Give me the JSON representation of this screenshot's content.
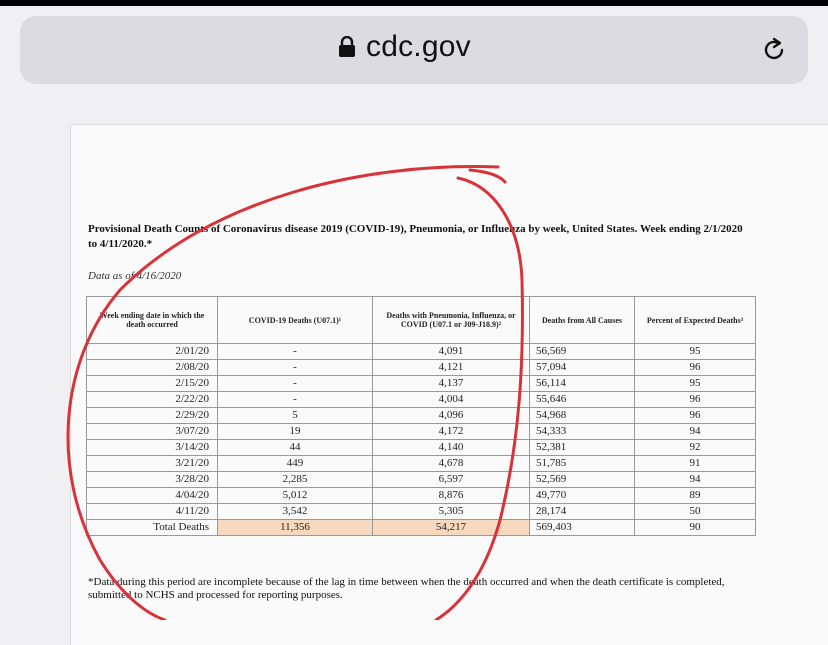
{
  "browser": {
    "url": "cdc.gov",
    "lock_icon": "lock-icon",
    "reload_icon": "reload-icon"
  },
  "document": {
    "title": "Provisional Death Counts of Coronavirus disease 2019 (COVID-19), Pneumonia, or Influenza by week, United States. Week ending 2/1/2020 to 4/11/2020.*",
    "data_as_of": "Data as of 4/16/2020",
    "table": {
      "headers": [
        "Week ending date in which the death occurred",
        "COVID-19 Deaths (U07.1)¹",
        "Deaths with Pneumonia, Influenza, or COVID (U07.1 or J09-J18.9)²",
        "Deaths from All Causes",
        "Percent of Expected Deaths³"
      ],
      "rows": [
        [
          "2/01/20",
          "-",
          "4,091",
          "56,569",
          "95"
        ],
        [
          "2/08/20",
          "-",
          "4,121",
          "57,094",
          "96"
        ],
        [
          "2/15/20",
          "-",
          "4,137",
          "56,114",
          "95"
        ],
        [
          "2/22/20",
          "-",
          "4,004",
          "55,646",
          "96"
        ],
        [
          "2/29/20",
          "5",
          "4,096",
          "54,968",
          "96"
        ],
        [
          "3/07/20",
          "19",
          "4,172",
          "54,333",
          "94"
        ],
        [
          "3/14/20",
          "44",
          "4,140",
          "52,381",
          "92"
        ],
        [
          "3/21/20",
          "449",
          "4,678",
          "51,785",
          "91"
        ],
        [
          "3/28/20",
          "2,285",
          "6,597",
          "52,569",
          "94"
        ],
        [
          "4/04/20",
          "5,012",
          "8,876",
          "49,770",
          "89"
        ],
        [
          "4/11/20",
          "3,542",
          "5,305",
          "28,174",
          "50"
        ]
      ],
      "total": [
        "Total Deaths",
        "11,356",
        "54,217",
        "569,403",
        "90"
      ]
    },
    "footnote": "*Data during this period are incomplete because of the lag in time between when the death occurred and when the death certificate is completed, submitted to NCHS and processed for reporting purposes."
  },
  "colors": {
    "annotation": "#d9333a",
    "highlight": "#f6d8bf",
    "urlbar": "#dcdce0"
  }
}
